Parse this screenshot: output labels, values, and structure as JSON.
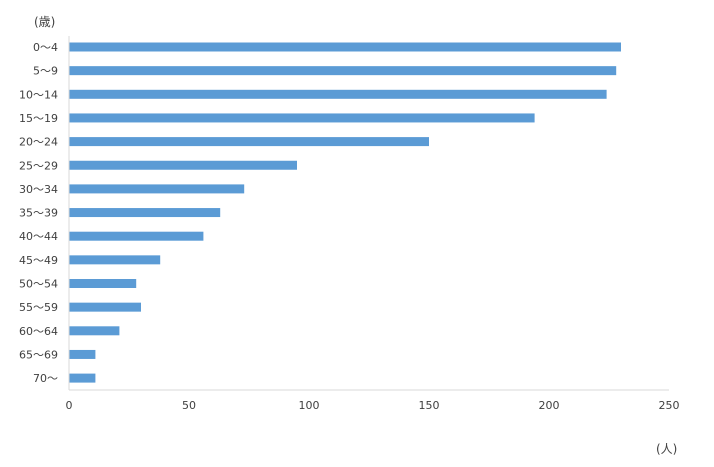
{
  "chart_data": {
    "type": "bar",
    "orientation": "horizontal",
    "ylabel": "(歳)",
    "xlabel": "(人)",
    "categories": [
      "0～4",
      "5～9",
      "10～14",
      "15～19",
      "20～24",
      "25～29",
      "30～34",
      "35～39",
      "40～44",
      "45～49",
      "50～54",
      "55～59",
      "60～64",
      "65～69",
      "70～"
    ],
    "values": [
      230,
      228,
      224,
      194,
      150,
      95,
      73,
      63,
      56,
      38,
      28,
      30,
      21,
      11,
      11
    ],
    "xlim": [
      0,
      250
    ],
    "xticks": [
      0,
      50,
      100,
      150,
      200,
      250
    ],
    "bar_color": "#5b9bd5",
    "axis_color": "#d9d9d9",
    "grid": false,
    "legend": "none"
  }
}
